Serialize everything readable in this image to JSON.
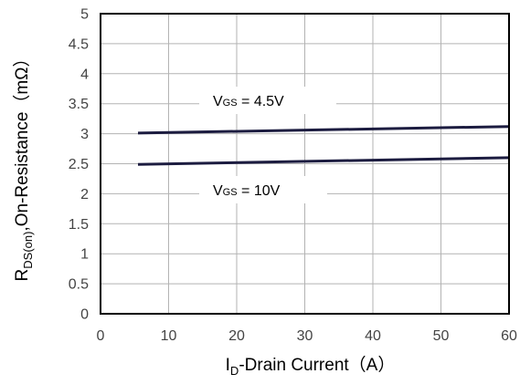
{
  "chart_data": {
    "type": "line",
    "title": "",
    "xlabel": {
      "main": "I",
      "sub": "D",
      "rest": "-Drain Current（A）"
    },
    "ylabel": {
      "main": "R",
      "sub": "DS(on)",
      "rest": ",On-Resistance（mΩ）"
    },
    "xlim": [
      0,
      60
    ],
    "ylim": [
      0,
      5
    ],
    "x_ticks": [
      "0",
      "10",
      "20",
      "30",
      "40",
      "50",
      "60"
    ],
    "y_ticks": [
      "0",
      "0.5",
      "1",
      "1.5",
      "2",
      "2.5",
      "3",
      "3.5",
      "4",
      "4.5",
      "5"
    ],
    "grid": true,
    "series": [
      {
        "name": "VGS = 4.5V",
        "label": {
          "main": "V",
          "sub": "GS",
          "rest": " = 4.5V"
        },
        "color": "#1c1c40",
        "x": [
          5.5,
          60
        ],
        "y": [
          3.01,
          3.12
        ]
      },
      {
        "name": "VGS = 10V",
        "label": {
          "main": "V",
          "sub": "GS",
          "rest": " = 10V"
        },
        "color": "#1c1c40",
        "x": [
          5.5,
          60
        ],
        "y": [
          2.49,
          2.6
        ]
      }
    ]
  }
}
